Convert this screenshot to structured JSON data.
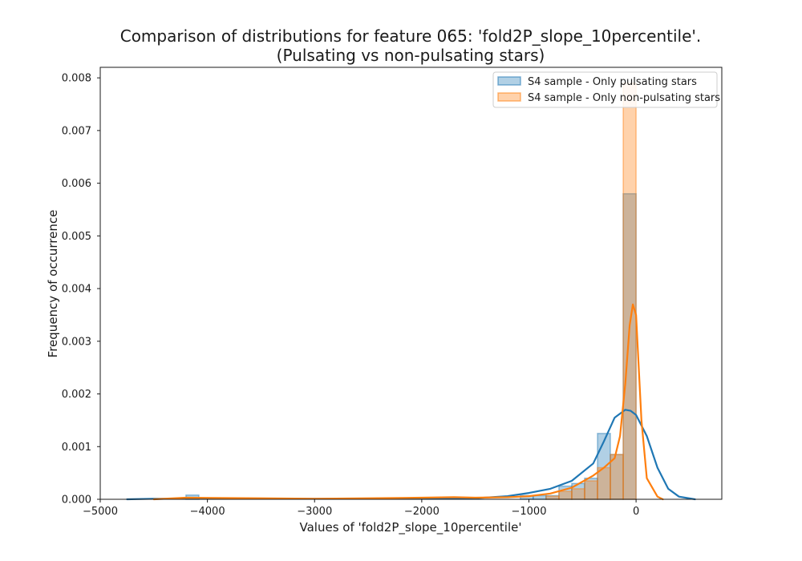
{
  "chart_data": {
    "type": "histogram",
    "title_line1": "Comparison of distributions for feature 065: 'fold2P_slope_10percentile'.",
    "title_line2": "(Pulsating vs non-pulsating stars)",
    "xlabel": "Values of 'fold2P_slope_10percentile'",
    "ylabel": "Frequency of occurrence",
    "xlim": [
      -5000,
      800
    ],
    "ylim": [
      0,
      0.0082
    ],
    "xticks": [
      -5000,
      -4000,
      -3000,
      -2000,
      -1000,
      0
    ],
    "xtick_labels": [
      "−5000",
      "−4000",
      "−3000",
      "−2000",
      "−1000",
      "0"
    ],
    "yticks": [
      0.0,
      0.001,
      0.002,
      0.003,
      0.004,
      0.005,
      0.006,
      0.007,
      0.008
    ],
    "ytick_labels": [
      "0.000",
      "0.001",
      "0.002",
      "0.003",
      "0.004",
      "0.005",
      "0.006",
      "0.007",
      "0.008"
    ],
    "grid": false,
    "legend_position": "top-right",
    "series": [
      {
        "name": "S4 sample - Only pulsating stars",
        "color": "#1f77b4",
        "bins": [
          {
            "x0": -4200,
            "x1": -4080,
            "y": 8e-05
          },
          {
            "x0": -1080,
            "x1": -960,
            "y": 7e-05
          },
          {
            "x0": -960,
            "x1": -840,
            "y": 7e-05
          },
          {
            "x0": -840,
            "x1": -720,
            "y": 7e-05
          },
          {
            "x0": -720,
            "x1": -600,
            "y": 0.00025
          },
          {
            "x0": -600,
            "x1": -480,
            "y": 0.0003
          },
          {
            "x0": -480,
            "x1": -360,
            "y": 0.0004
          },
          {
            "x0": -360,
            "x1": -240,
            "y": 0.00125
          },
          {
            "x0": -240,
            "x1": -120,
            "y": 0.00085
          },
          {
            "x0": -120,
            "x1": 0,
            "y": 0.0058
          }
        ],
        "kde_x": [
          -4750,
          -4500,
          -4000,
          -3000,
          -2000,
          -1500,
          -1200,
          -1000,
          -800,
          -600,
          -400,
          -300,
          -200,
          -100,
          -50,
          0,
          100,
          200,
          300,
          400,
          550
        ],
        "kde_y": [
          0.0,
          1e-05,
          1e-05,
          1e-05,
          1e-05,
          2e-05,
          6e-05,
          0.00012,
          0.0002,
          0.00035,
          0.00068,
          0.0011,
          0.00155,
          0.0017,
          0.00168,
          0.0016,
          0.0012,
          0.0006,
          0.0002,
          5e-05,
          0.0
        ]
      },
      {
        "name": "S4 sample - Only non-pulsating stars",
        "color": "#ff7f0e",
        "bins": [
          {
            "x0": -840,
            "x1": -720,
            "y": 6e-05
          },
          {
            "x0": -720,
            "x1": -600,
            "y": 0.00015
          },
          {
            "x0": -600,
            "x1": -480,
            "y": 0.0002
          },
          {
            "x0": -480,
            "x1": -360,
            "y": 0.00035
          },
          {
            "x0": -360,
            "x1": -240,
            "y": 0.0006
          },
          {
            "x0": -240,
            "x1": -120,
            "y": 0.00085
          },
          {
            "x0": -120,
            "x1": 0,
            "y": 0.0079
          }
        ],
        "kde_x": [
          -4500,
          -4200,
          -3500,
          -3000,
          -2500,
          -2000,
          -1700,
          -1500,
          -1200,
          -1000,
          -800,
          -600,
          -400,
          -300,
          -200,
          -150,
          -100,
          -60,
          -30,
          0,
          50,
          100,
          200,
          250
        ],
        "kde_y": [
          0.0,
          3e-05,
          2e-05,
          1e-05,
          2e-05,
          3e-05,
          4e-05,
          3e-05,
          4e-05,
          6e-05,
          0.00011,
          0.00022,
          0.00045,
          0.0006,
          0.00078,
          0.0012,
          0.0022,
          0.0033,
          0.0037,
          0.0035,
          0.0015,
          0.0004,
          5e-05,
          0.0
        ]
      }
    ]
  }
}
